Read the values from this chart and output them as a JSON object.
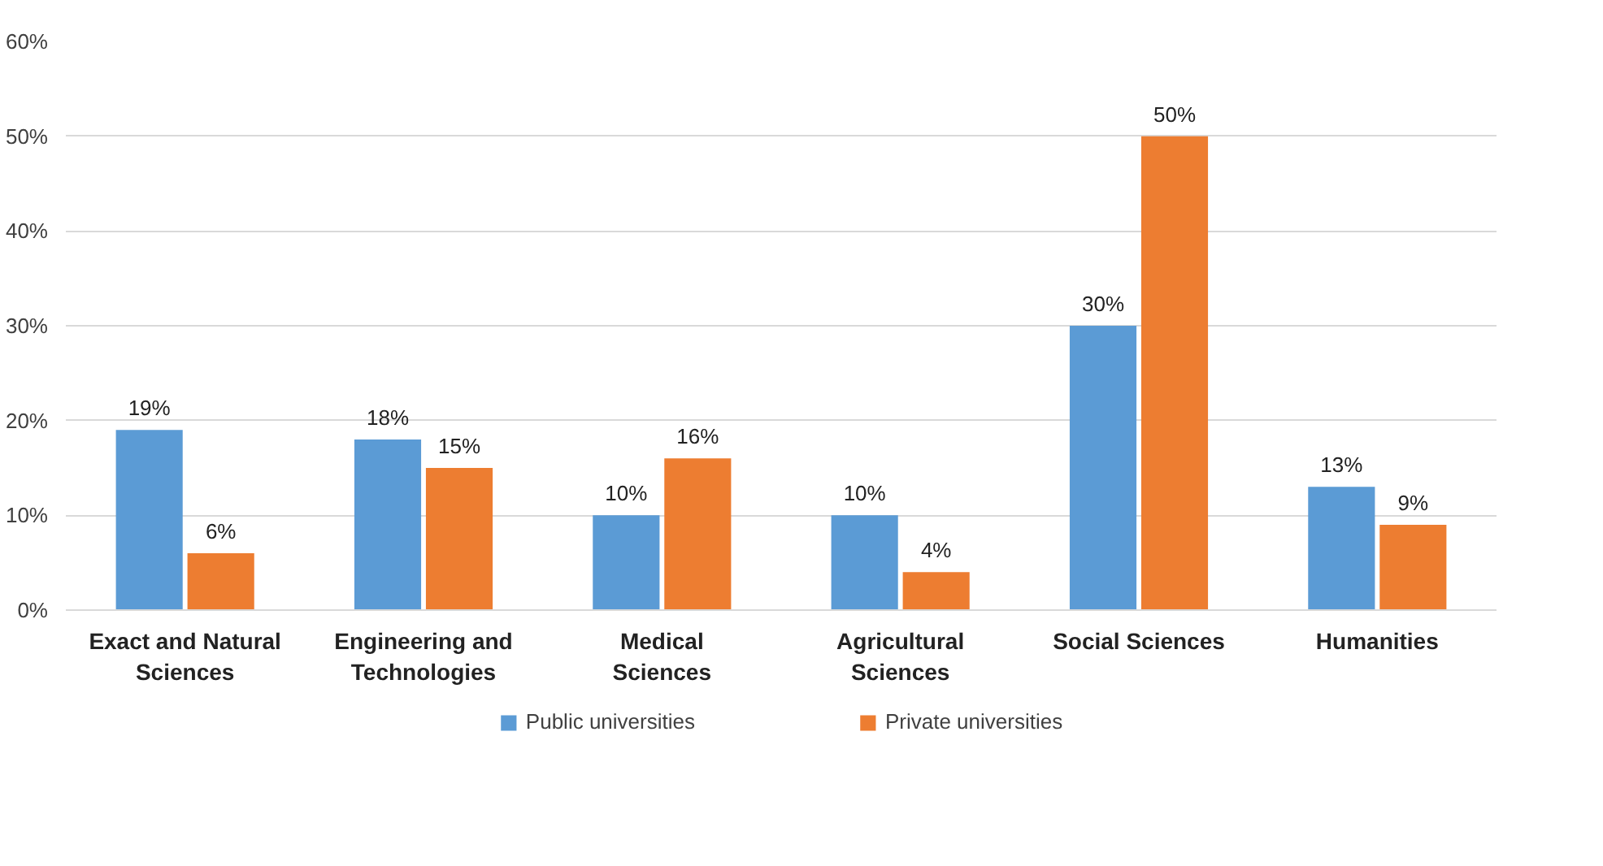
{
  "chart_data": {
    "type": "bar",
    "categories": [
      "Exact and Natural\nSciences",
      "Engineering and\nTechnologies",
      "Medical\nSciences",
      "Agricultural\nSciences",
      "Social Sciences",
      "Humanities"
    ],
    "series": [
      {
        "name": "Public universities",
        "color": "#5b9bd5",
        "values": [
          19,
          18,
          10,
          10,
          30,
          13
        ],
        "value_labels": [
          "19%",
          "18%",
          "10%",
          "10%",
          "30%",
          "13%"
        ]
      },
      {
        "name": "Private universities",
        "color": "#ed7d31",
        "values": [
          6,
          15,
          16,
          4,
          50,
          9
        ],
        "value_labels": [
          "6%",
          "15%",
          "16%",
          "4%",
          "50%",
          "9%"
        ]
      }
    ],
    "ylim": [
      0,
      60
    ],
    "yticks": [
      {
        "value": 0,
        "label": "0%"
      },
      {
        "value": 10,
        "label": "10%"
      },
      {
        "value": 20,
        "label": "20%"
      },
      {
        "value": 30,
        "label": "30%"
      },
      {
        "value": 40,
        "label": "40%"
      },
      {
        "value": 50,
        "label": "50%"
      },
      {
        "value": 60,
        "label": "60%"
      }
    ],
    "grid": "y",
    "legend": "bottom"
  }
}
